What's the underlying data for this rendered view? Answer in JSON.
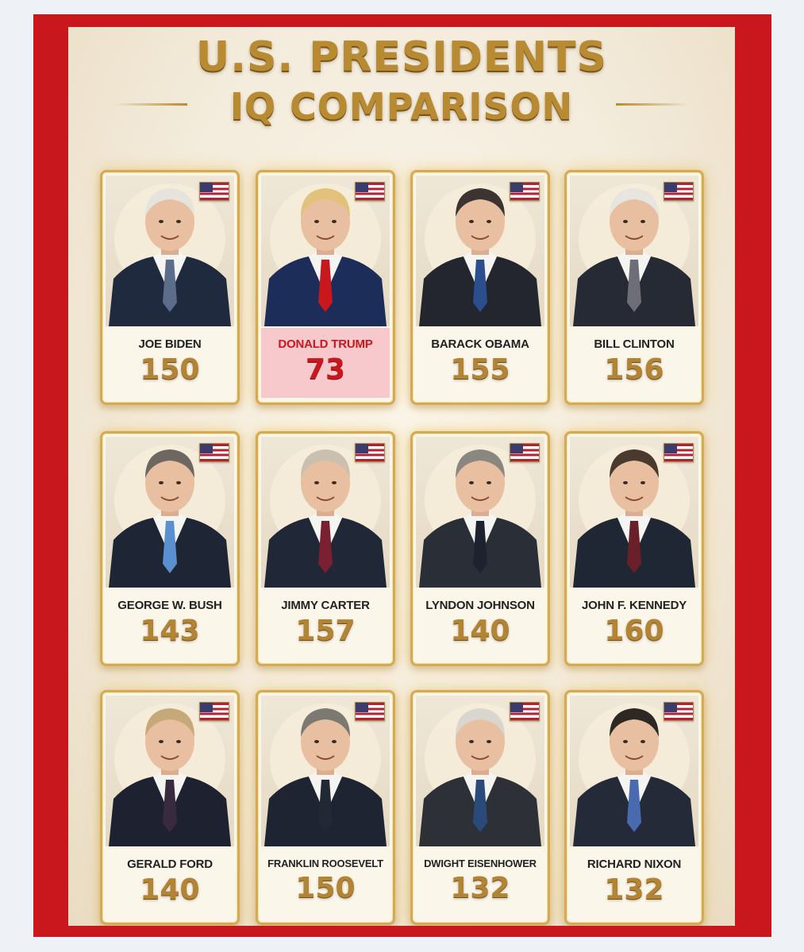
{
  "title": {
    "line1": "U.S. PRESIDENTS",
    "line2": "IQ COMPARISON"
  },
  "colors": {
    "frame_red": "#c8171d",
    "gold": "#b88a32",
    "highlight_pink": "#f7c9cd"
  },
  "presidents": [
    {
      "name": "JOE BIDEN",
      "iq": "150",
      "hair": "#e6e3dc",
      "tie": "#5c6d8c",
      "suit": "#1f2a3e",
      "icon": "us-flag-icon"
    },
    {
      "name": "DONALD TRUMP",
      "iq": "73",
      "hair": "#e2c27a",
      "tie": "#c8171d",
      "suit": "#1d2d5a",
      "icon": "us-flag-icon",
      "highlight": true
    },
    {
      "name": "BARACK OBAMA",
      "iq": "155",
      "hair": "#3c3430",
      "tie": "#2b4f8c",
      "suit": "#23262e",
      "icon": "us-flag-icon"
    },
    {
      "name": "BILL CLINTON",
      "iq": "156",
      "hair": "#e7e5e0",
      "tie": "#6e6e78",
      "suit": "#262a34",
      "icon": "us-flag-icon"
    },
    {
      "name": "GEORGE W. BUSH",
      "iq": "143",
      "hair": "#6d6761",
      "tie": "#5a8fd0",
      "suit": "#1e2636",
      "icon": "us-flag-icon"
    },
    {
      "name": "JIMMY CARTER",
      "iq": "157",
      "hair": "#c9c0b0",
      "tie": "#7a2030",
      "suit": "#202838",
      "icon": "us-flag-icon"
    },
    {
      "name": "LYNDON JOHNSON",
      "iq": "140",
      "hair": "#8a8680",
      "tie": "#1e2230",
      "suit": "#2a2e36",
      "icon": "us-flag-icon"
    },
    {
      "name": "JOHN F. KENNEDY",
      "iq": "160",
      "hair": "#4a3a2e",
      "tie": "#6a2028",
      "suit": "#1f2634",
      "icon": "us-flag-icon"
    },
    {
      "name": "GERALD FORD",
      "iq": "140",
      "hair": "#c6a978",
      "tie": "#3a2a40",
      "suit": "#1e2230",
      "icon": "us-flag-icon"
    },
    {
      "name": "FRANKLIN ROOSEVELT",
      "iq": "150",
      "hair": "#7c7872",
      "tie": "#222834",
      "suit": "#1e2432",
      "icon": "us-flag-icon"
    },
    {
      "name": "DWIGHT EISENHOWER",
      "iq": "132",
      "hair": "#d9d6d0",
      "tie": "#2a4a7a",
      "suit": "#2e3038",
      "icon": "us-flag-icon"
    },
    {
      "name": "RICHARD NIXON",
      "iq": "132",
      "hair": "#2e2824",
      "tie": "#4a6ab0",
      "suit": "#242a38",
      "icon": "us-flag-icon"
    }
  ]
}
